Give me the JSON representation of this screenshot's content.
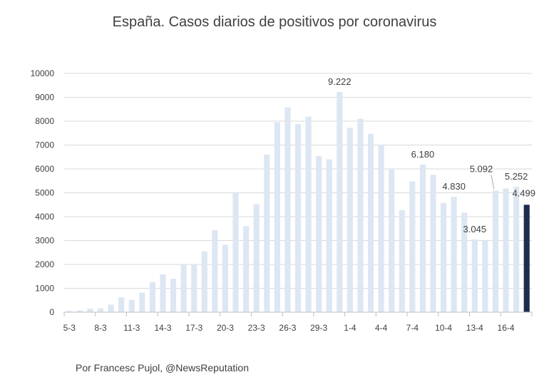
{
  "chart_data": {
    "type": "bar",
    "title": "España. Casos diarios de positivos por coronavirus",
    "footer": "Por Francesc Pujol, @NewsReputation",
    "ylim": [
      0,
      10000
    ],
    "yticks": [
      "0",
      "1000",
      "2000",
      "3000",
      "4000",
      "5000",
      "6000",
      "7000",
      "8000",
      "9000",
      "10000"
    ],
    "x_tick_labels": [
      "5-3",
      "8-3",
      "11-3",
      "14-3",
      "17-3",
      "20-3",
      "23-3",
      "26-3",
      "29-3",
      "1-4",
      "4-4",
      "7-4",
      "10-4",
      "13-4",
      "16-4"
    ],
    "categories": [
      "5-3",
      "6-3",
      "7-3",
      "8-3",
      "9-3",
      "10-3",
      "11-3",
      "12-3",
      "13-3",
      "14-3",
      "15-3",
      "16-3",
      "17-3",
      "18-3",
      "19-3",
      "20-3",
      "21-3",
      "22-3",
      "23-3",
      "24-3",
      "25-3",
      "26-3",
      "27-3",
      "28-3",
      "29-3",
      "30-3",
      "31-3",
      "1-4",
      "2-4",
      "3-4",
      "4-4",
      "5-4",
      "6-4",
      "7-4",
      "8-4",
      "9-4",
      "10-4",
      "11-4",
      "12-4",
      "13-4",
      "14-4",
      "15-4",
      "16-4",
      "17-4",
      "18-4"
    ],
    "values": [
      50,
      70,
      150,
      160,
      320,
      620,
      520,
      820,
      1260,
      1580,
      1400,
      2000,
      2000,
      2550,
      3430,
      2820,
      5000,
      3600,
      4520,
      6600,
      7950,
      8580,
      7880,
      8190,
      6540,
      6400,
      9222,
      7720,
      8100,
      7470,
      7020,
      6020,
      4270,
      5480,
      6180,
      5760,
      4570,
      4830,
      4170,
      3045,
      3000,
      5092,
      5183,
      5252,
      4499
    ],
    "data_labels": [
      {
        "category": "31-3",
        "text": "9.222"
      },
      {
        "category": "8-4",
        "text": "6.180"
      },
      {
        "category": "11-4",
        "text": "4.830"
      },
      {
        "category": "13-4",
        "text": "3.045"
      },
      {
        "category": "15-4",
        "text": "5.092"
      },
      {
        "category": "17-4",
        "text": "5.252"
      },
      {
        "category": "18-4",
        "text": "4.499"
      }
    ],
    "highlight_category": "18-4",
    "colors": {
      "bar": "#dde7f3",
      "highlight": "#1f2d4d",
      "grid": "#d9d9d9",
      "axis": "#bfbfbf",
      "text": "#404040"
    },
    "grid": true
  }
}
